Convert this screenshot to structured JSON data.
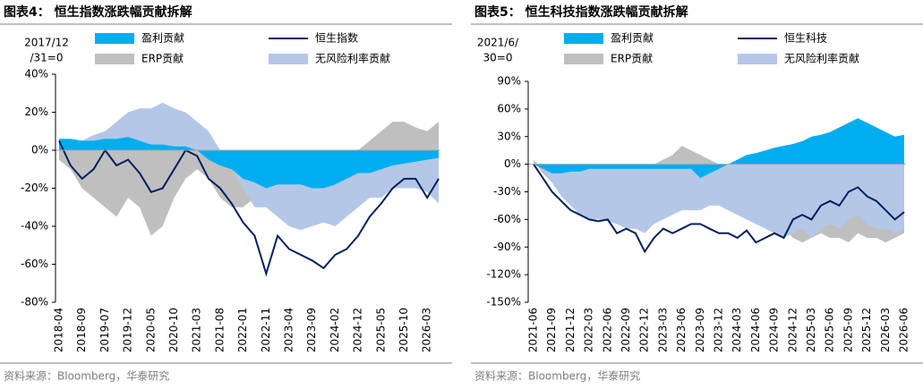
{
  "chart_data": [
    {
      "type": "area-line",
      "title": "图表4：  恒生指数涨跌幅贡献拆解",
      "y_note": [
        "2017/12",
        "/31=0"
      ],
      "source": "资料来源：Bloomberg，华泰研究",
      "categories": [
        "2018-04",
        null,
        "2018-09",
        null,
        "2019-07",
        null,
        "2019-12",
        null,
        "2020-05",
        null,
        "2020-10",
        null,
        "2021-03",
        null,
        "2021-08",
        null,
        "2022-01",
        null,
        "2022-11",
        null,
        "2023-04",
        null,
        "2023-09",
        null,
        "2024-02",
        null,
        "2024-12",
        null,
        "2025-05",
        null,
        "2025-10",
        null,
        "2026-03",
        null
      ],
      "ylim": [
        -80,
        40
      ],
      "yticks": [
        {
          "value": -80,
          "label": "-80%"
        },
        {
          "value": -60,
          "label": "-60%"
        },
        {
          "value": -40,
          "label": "-40%"
        },
        {
          "value": -20,
          "label": "-20%"
        },
        {
          "value": 0,
          "label": "0%"
        },
        {
          "value": 20,
          "label": "20%"
        },
        {
          "value": 40,
          "label": "40%"
        }
      ],
      "series": [
        {
          "name": "ERP贡献",
          "kind": "area",
          "color": "#bfbfbf",
          "values": [
            -5,
            -10,
            -20,
            -25,
            -30,
            -35,
            -25,
            -30,
            -45,
            -40,
            -25,
            -15,
            -10,
            -15,
            -25,
            -30,
            -30,
            -25,
            -20,
            -15,
            -10,
            -5,
            -5,
            -10,
            -10,
            -5,
            0,
            5,
            10,
            15,
            15,
            12,
            10,
            15
          ]
        },
        {
          "name": "无风险利率贡献",
          "kind": "area",
          "color": "#b4c7e7",
          "values": [
            3,
            5,
            5,
            8,
            10,
            15,
            20,
            22,
            22,
            25,
            22,
            20,
            15,
            10,
            0,
            -10,
            -20,
            -30,
            -30,
            -35,
            -40,
            -42,
            -40,
            -38,
            -40,
            -35,
            -30,
            -25,
            -25,
            -20,
            -20,
            -20,
            -22,
            -28
          ]
        },
        {
          "name": "盈利贡献",
          "kind": "area",
          "color": "#00aeef",
          "values": [
            6,
            6,
            5,
            5,
            6,
            6,
            7,
            5,
            3,
            3,
            2,
            2,
            0,
            -5,
            -8,
            -10,
            -15,
            -17,
            -20,
            -18,
            -18,
            -18,
            -20,
            -20,
            -18,
            -15,
            -12,
            -12,
            -10,
            -8,
            -7,
            -6,
            -5,
            -4
          ]
        },
        {
          "name": "恒生指数",
          "kind": "line",
          "color": "#002060",
          "values": [
            5,
            -8,
            -15,
            -10,
            0,
            -8,
            -5,
            -12,
            -22,
            -20,
            -10,
            0,
            -3,
            -15,
            -20,
            -28,
            -38,
            -45,
            -65,
            -45,
            -52,
            -55,
            -58,
            -62,
            -55,
            -52,
            -45,
            -35,
            -28,
            -20,
            -15,
            -15,
            -25,
            -15
          ]
        }
      ]
    },
    {
      "type": "area-line",
      "title": "图表5：  恒生科技指数涨跌幅贡献拆解",
      "y_note": [
        "2021/6/",
        "30=0"
      ],
      "source": "资料来源：Bloomberg，华泰研究",
      "categories": [
        "2021-06",
        null,
        "2021-09",
        null,
        "2021-12",
        null,
        "2022-03",
        null,
        "2022-06",
        null,
        "2022-09",
        null,
        "2022-12",
        null,
        "2023-03",
        null,
        "2023-06",
        null,
        "2023-09",
        null,
        "2023-12",
        null,
        "2024-03",
        null,
        "2024-06",
        null,
        "2024-09",
        null,
        "2024-12",
        null,
        "2025-03",
        null,
        "2025-06",
        null,
        "2025-09",
        null,
        "2025-12",
        null,
        "2026-03",
        null,
        "2026-06"
      ],
      "ylim": [
        -150,
        90
      ],
      "yticks": [
        {
          "value": -150,
          "label": "-150%"
        },
        {
          "value": -120,
          "label": "-120%"
        },
        {
          "value": -90,
          "label": "-90%"
        },
        {
          "value": -60,
          "label": "-60%"
        },
        {
          "value": -30,
          "label": "-30%"
        },
        {
          "value": 0,
          "label": "0%"
        },
        {
          "value": 30,
          "label": "30%"
        },
        {
          "value": 60,
          "label": "60%"
        },
        {
          "value": 90,
          "label": "90%"
        }
      ],
      "series": [
        {
          "name": "ERP贡献",
          "kind": "area",
          "color": "#bfbfbf",
          "values": [
            5,
            -10,
            -20,
            -30,
            -40,
            -45,
            -40,
            -30,
            -20,
            -15,
            -10,
            -5,
            -5,
            0,
            5,
            10,
            20,
            15,
            10,
            5,
            0,
            -5,
            -10,
            -20,
            -30,
            -50,
            -60,
            -70,
            -80,
            -85,
            -80,
            -75,
            -80,
            -80,
            -85,
            -75,
            -80,
            -80,
            -85,
            -80,
            -75
          ]
        },
        {
          "name": "无风险利率贡献",
          "kind": "area",
          "color": "#b4c7e7",
          "values": [
            5,
            -5,
            -20,
            -35,
            -45,
            -55,
            -60,
            -60,
            -62,
            -65,
            -70,
            -70,
            -75,
            -65,
            -60,
            -55,
            -50,
            -50,
            -50,
            -45,
            -45,
            -50,
            -55,
            -60,
            -65,
            -70,
            -75,
            -80,
            -75,
            -70,
            -80,
            -70,
            -65,
            -70,
            -60,
            -55,
            -65,
            -70,
            -70,
            -75,
            -70
          ]
        },
        {
          "name": "盈利贡献",
          "kind": "area",
          "color": "#00aeef",
          "values": [
            0,
            -5,
            -10,
            -10,
            -8,
            -8,
            -5,
            -5,
            -5,
            -5,
            -5,
            -5,
            -5,
            -5,
            -5,
            -5,
            -5,
            -5,
            -15,
            -10,
            -5,
            0,
            5,
            10,
            12,
            15,
            18,
            20,
            22,
            25,
            30,
            32,
            35,
            40,
            45,
            50,
            45,
            40,
            35,
            30,
            32
          ]
        },
        {
          "name": "恒生科技",
          "kind": "line",
          "color": "#002060",
          "values": [
            0,
            -15,
            -30,
            -40,
            -50,
            -55,
            -60,
            -62,
            -60,
            -75,
            -70,
            -75,
            -95,
            -80,
            -70,
            -75,
            -70,
            -65,
            -65,
            -70,
            -75,
            -75,
            -80,
            -72,
            -85,
            -80,
            -75,
            -80,
            -60,
            -55,
            -60,
            -45,
            -40,
            -45,
            -30,
            -25,
            -35,
            -40,
            -50,
            -60,
            -52
          ]
        }
      ]
    }
  ]
}
